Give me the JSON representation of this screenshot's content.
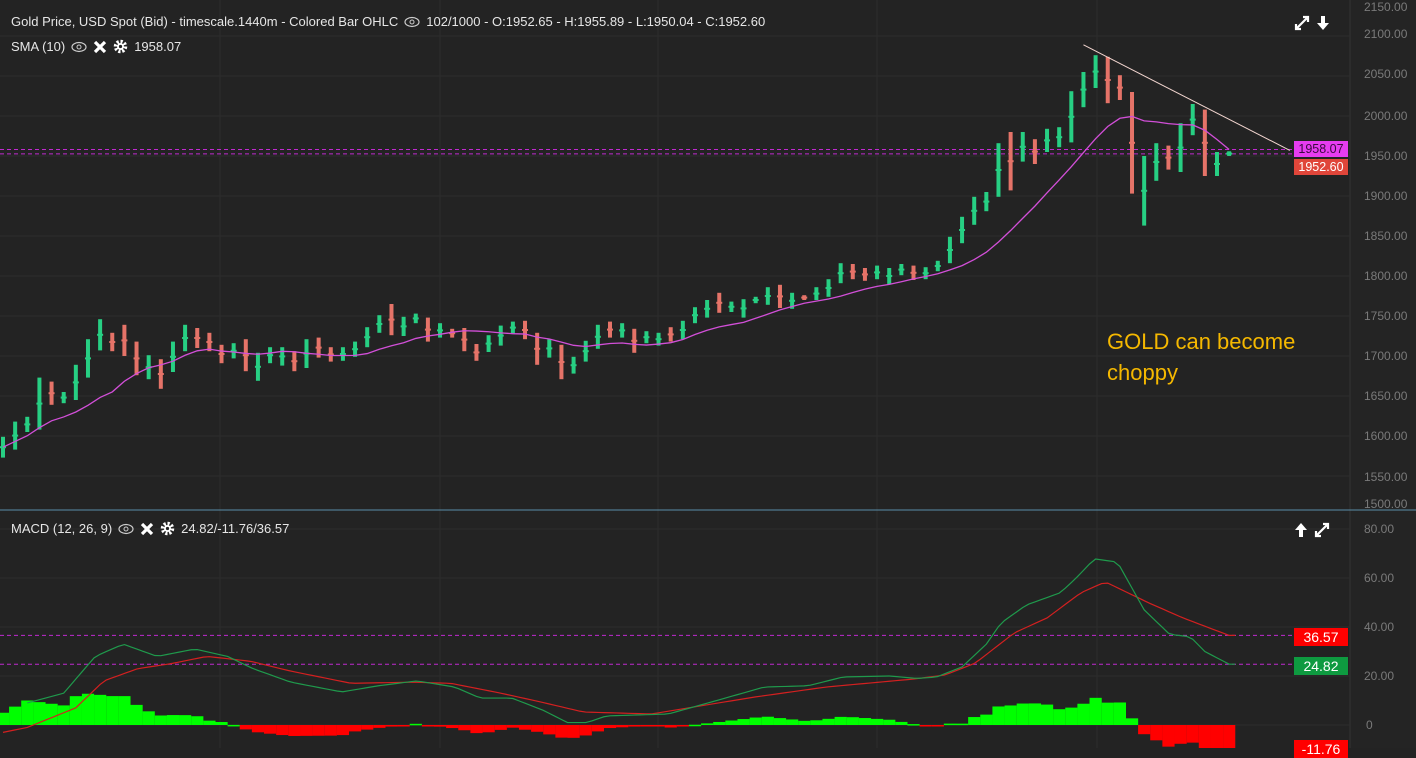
{
  "price_pane": {
    "title": "Gold Price, USD Spot (Bid) - timescale.1440m - Colored Bar OHLC",
    "ohlc": "102/1000 - O:1952.65 - H:1955.89 - L:1950.04 - C:1952.60",
    "sma_label": "SMA (10)",
    "sma_value": "1958.07",
    "sma_badge": "1958.07",
    "close_badge": "1952.60",
    "axis_labels": [
      "2150.00",
      "2100.00",
      "2050.00",
      "2000.00",
      "1950.00",
      "1900.00",
      "1850.00",
      "1800.00",
      "1750.00",
      "1700.00",
      "1650.00",
      "1600.00",
      "1550.00",
      "1500.00"
    ],
    "annotation_line1": "GOLD can become",
    "annotation_line2": "choppy"
  },
  "macd_pane": {
    "title": "MACD (12, 26, 9)",
    "values": "24.82/-11.76/36.57",
    "signal_badge": "36.57",
    "macd_badge": "24.82",
    "hist_badge": "-11.76",
    "axis_labels": [
      "80.00",
      "60.00",
      "40.00",
      "20.00",
      "0"
    ]
  },
  "colors": {
    "up": "#27cf83",
    "down": "#e57368",
    "sma": "#d24fd8",
    "macd": "#1f9a4c",
    "signal": "#d42020",
    "hist_up": "#00ff00",
    "hist_down": "#ff0000",
    "annotation": "#f5b800"
  },
  "chart_data": {
    "type": "ohlc",
    "sma_period": 10,
    "sma_last": 1958.07,
    "bars": [
      [
        1599,
        1573,
        1
      ],
      [
        1618,
        1583,
        1
      ],
      [
        1624,
        1605,
        1
      ],
      [
        1673,
        1608,
        1
      ],
      [
        1668,
        1639,
        0
      ],
      [
        1655,
        1641,
        1
      ],
      [
        1689,
        1645,
        1
      ],
      [
        1721,
        1673,
        1
      ],
      [
        1746,
        1707,
        1
      ],
      [
        1729,
        1706,
        0
      ],
      [
        1739,
        1700,
        0
      ],
      [
        1718,
        1676,
        0
      ],
      [
        1701,
        1671,
        1
      ],
      [
        1696,
        1659,
        0
      ],
      [
        1718,
        1680,
        1
      ],
      [
        1739,
        1706,
        1
      ],
      [
        1735,
        1710,
        0
      ],
      [
        1729,
        1706,
        0
      ],
      [
        1714,
        1691,
        0
      ],
      [
        1716,
        1697,
        1
      ],
      [
        1721,
        1681,
        0
      ],
      [
        1704,
        1669,
        1
      ],
      [
        1711,
        1691,
        1
      ],
      [
        1711,
        1688,
        1
      ],
      [
        1706,
        1681,
        0
      ],
      [
        1721,
        1685,
        1
      ],
      [
        1723,
        1698,
        0
      ],
      [
        1711,
        1693,
        0
      ],
      [
        1711,
        1694,
        1
      ],
      [
        1718,
        1699,
        1
      ],
      [
        1736,
        1711,
        1
      ],
      [
        1751,
        1729,
        1
      ],
      [
        1765,
        1726,
        0
      ],
      [
        1749,
        1725,
        1
      ],
      [
        1753,
        1741,
        1
      ],
      [
        1748,
        1718,
        0
      ],
      [
        1741,
        1723,
        1
      ],
      [
        1734,
        1723,
        0
      ],
      [
        1735,
        1706,
        0
      ],
      [
        1715,
        1694,
        0
      ],
      [
        1726,
        1705,
        1
      ],
      [
        1738,
        1713,
        1
      ],
      [
        1743,
        1728,
        1
      ],
      [
        1744,
        1721,
        0
      ],
      [
        1729,
        1689,
        0
      ],
      [
        1721,
        1698,
        1
      ],
      [
        1714,
        1671,
        0
      ],
      [
        1699,
        1678,
        1
      ],
      [
        1719,
        1693,
        1
      ],
      [
        1739,
        1709,
        1
      ],
      [
        1743,
        1723,
        0
      ],
      [
        1741,
        1723,
        1
      ],
      [
        1734,
        1704,
        0
      ],
      [
        1731,
        1716,
        1
      ],
      [
        1729,
        1713,
        1
      ],
      [
        1736,
        1718,
        0
      ],
      [
        1744,
        1721,
        1
      ],
      [
        1761,
        1741,
        1
      ],
      [
        1770,
        1748,
        1
      ],
      [
        1779,
        1754,
        0
      ],
      [
        1768,
        1755,
        1
      ],
      [
        1771,
        1748,
        1
      ],
      [
        1774,
        1766,
        1
      ],
      [
        1786,
        1764,
        1
      ],
      [
        1789,
        1760,
        0
      ],
      [
        1779,
        1759,
        1
      ],
      [
        1776,
        1770,
        0
      ],
      [
        1786,
        1770,
        1
      ],
      [
        1796,
        1774,
        1
      ],
      [
        1816,
        1791,
        1
      ],
      [
        1815,
        1796,
        0
      ],
      [
        1810,
        1794,
        0
      ],
      [
        1813,
        1796,
        1
      ],
      [
        1810,
        1790,
        1
      ],
      [
        1815,
        1801,
        1
      ],
      [
        1813,
        1795,
        0
      ],
      [
        1811,
        1796,
        1
      ],
      [
        1819,
        1806,
        1
      ],
      [
        1849,
        1816,
        1
      ],
      [
        1874,
        1841,
        1
      ],
      [
        1899,
        1864,
        1
      ],
      [
        1905,
        1881,
        1
      ],
      [
        1966,
        1899,
        1
      ],
      [
        1980,
        1907,
        0
      ],
      [
        1980,
        1943,
        1
      ],
      [
        1971,
        1940,
        0
      ],
      [
        1984,
        1955,
        1
      ],
      [
        1986,
        1961,
        1
      ],
      [
        2031,
        1967,
        1
      ],
      [
        2055,
        2011,
        1
      ],
      [
        2076,
        2035,
        1
      ],
      [
        2074,
        2016,
        0
      ],
      [
        2051,
        2020,
        0
      ],
      [
        2030,
        1903,
        0
      ],
      [
        1950,
        1863,
        1
      ],
      [
        1966,
        1919,
        1
      ],
      [
        1963,
        1933,
        0
      ],
      [
        1991,
        1930,
        1
      ],
      [
        2015,
        1976,
        1
      ],
      [
        2008,
        1925,
        0
      ],
      [
        1955,
        1925,
        1
      ],
      [
        1955.89,
        1950.04,
        1
      ]
    ],
    "price_ylim": [
      1500,
      2150
    ],
    "trendline": {
      "from": [
        89,
        2089
      ],
      "to": [
        106,
        1957
      ]
    },
    "macd_line": [
      [
        0,
        2
      ],
      [
        2,
        9
      ],
      [
        5,
        13
      ],
      [
        7.6,
        28
      ],
      [
        9.9,
        33
      ],
      [
        12.7,
        28
      ],
      [
        15.8,
        31
      ],
      [
        18.5,
        28
      ],
      [
        20.6,
        23
      ],
      [
        23.7,
        17.5
      ],
      [
        27.9,
        13.5
      ],
      [
        30.9,
        16
      ],
      [
        34.1,
        18
      ],
      [
        37.2,
        15.5
      ],
      [
        39.3,
        11
      ],
      [
        41.9,
        11
      ],
      [
        44.5,
        6
      ],
      [
        46.5,
        1
      ],
      [
        48.1,
        1
      ],
      [
        49.7,
        3.7
      ],
      [
        54.8,
        4.5
      ],
      [
        58.8,
        10
      ],
      [
        62.7,
        15.5
      ],
      [
        66.3,
        16
      ],
      [
        69.2,
        19.6
      ],
      [
        73,
        20
      ],
      [
        75.3,
        19
      ],
      [
        76.9,
        19.6
      ],
      [
        79,
        23.7
      ],
      [
        81,
        33
      ],
      [
        82.2,
        41.6
      ],
      [
        84.3,
        49
      ],
      [
        87.1,
        54
      ],
      [
        88.4,
        60
      ],
      [
        89.9,
        67.8
      ],
      [
        91.8,
        66.5
      ],
      [
        94,
        47
      ],
      [
        96.1,
        37
      ],
      [
        97.8,
        36
      ],
      [
        99,
        30
      ],
      [
        101,
        24.82
      ]
    ],
    "signal_line": [
      [
        0,
        -3
      ],
      [
        2,
        -1
      ],
      [
        6,
        7
      ],
      [
        8.3,
        18
      ],
      [
        11.1,
        23
      ],
      [
        13.8,
        25
      ],
      [
        16.8,
        28
      ],
      [
        20.4,
        26
      ],
      [
        23.7,
        22
      ],
      [
        28.7,
        17
      ],
      [
        33.7,
        17.5
      ],
      [
        36.9,
        17
      ],
      [
        41,
        13
      ],
      [
        44.3,
        9.4
      ],
      [
        47.8,
        5.3
      ],
      [
        53.4,
        4.5
      ],
      [
        61.9,
        11.4
      ],
      [
        67.8,
        15.5
      ],
      [
        75.1,
        18.8
      ],
      [
        77.6,
        20.4
      ],
      [
        80.1,
        25.3
      ],
      [
        83.3,
        37.6
      ],
      [
        86,
        43.7
      ],
      [
        88.8,
        54
      ],
      [
        90.8,
        58.4
      ],
      [
        94.4,
        49.8
      ],
      [
        97.2,
        43.7
      ],
      [
        101,
        36.57
      ]
    ],
    "macd_ylim": [
      -12,
      85
    ]
  }
}
